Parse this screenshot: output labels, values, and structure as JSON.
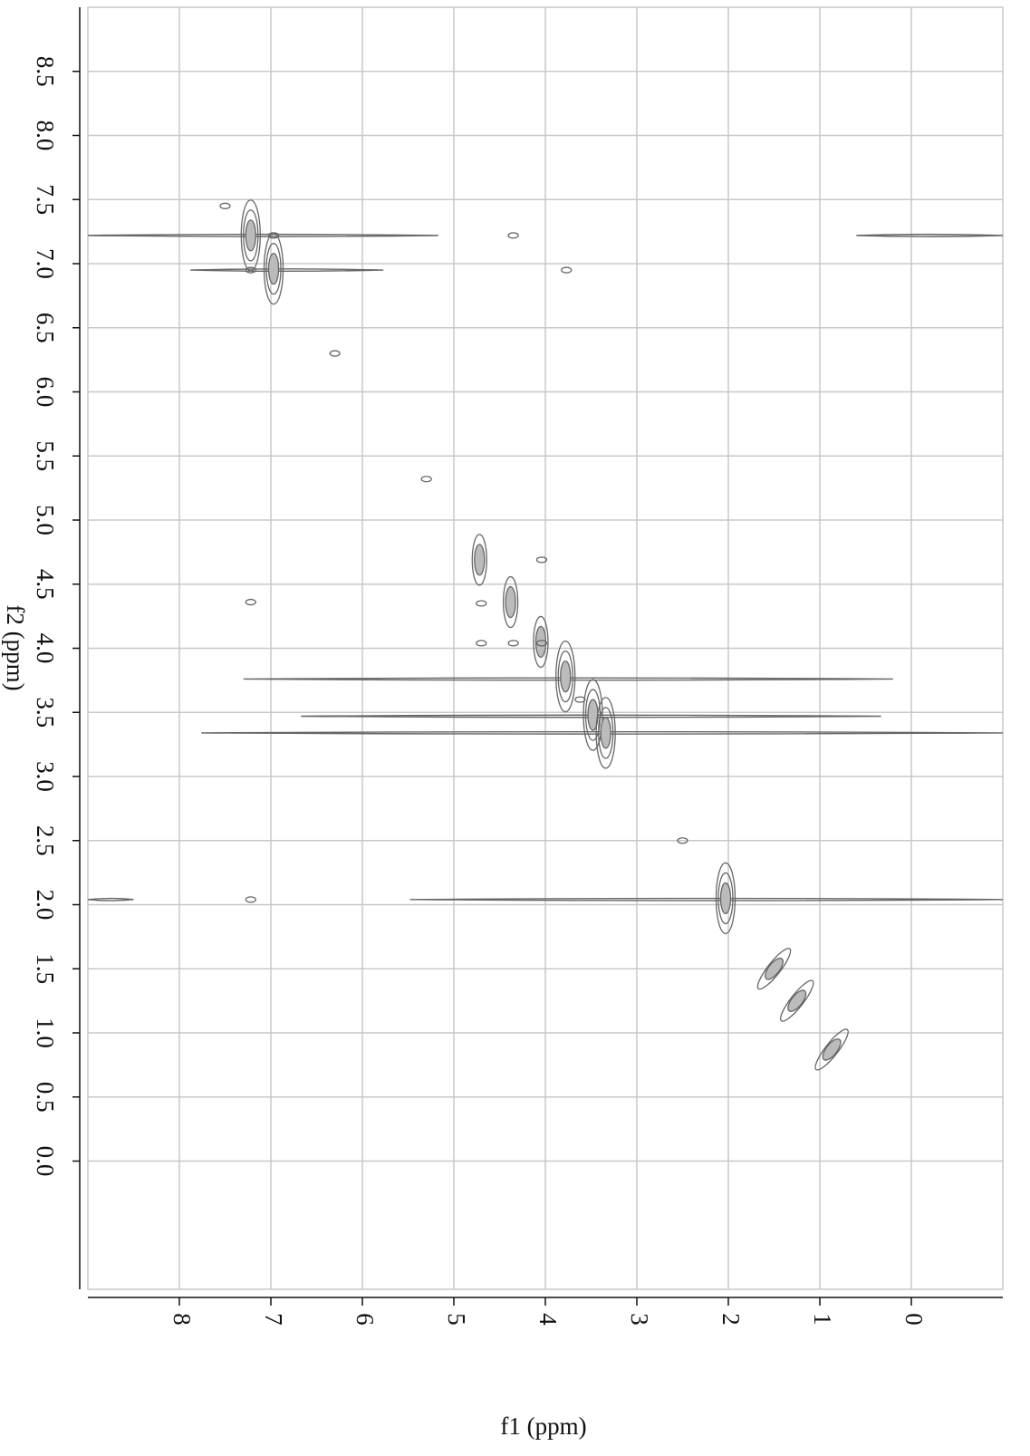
{
  "chart_data": {
    "type": "contour",
    "xlabel": "f1 (ppm)",
    "ylabel": "f2 (ppm)",
    "xlim": [
      9.0,
      -1.0
    ],
    "ylim": [
      -1.0,
      9.0
    ],
    "xticks": [
      8,
      7,
      6,
      5,
      4,
      3,
      2,
      1,
      0
    ],
    "yticks": [
      {
        "value": 0,
        "label": "0.0"
      },
      {
        "value": 0.5,
        "label": "0.5"
      },
      {
        "value": 1,
        "label": "1.0"
      },
      {
        "value": 1.5,
        "label": "1.5"
      },
      {
        "value": 2,
        "label": "2.0"
      },
      {
        "value": 2.5,
        "label": "2.5"
      },
      {
        "value": 3,
        "label": "3.0"
      },
      {
        "value": 3.5,
        "label": "3.5"
      },
      {
        "value": 4,
        "label": "4.0"
      },
      {
        "value": 4.5,
        "label": "4.5"
      },
      {
        "value": 5,
        "label": "5.0"
      },
      {
        "value": 5.5,
        "label": "5.5"
      },
      {
        "value": 6,
        "label": "6.0"
      },
      {
        "value": 6.5,
        "label": "6.5"
      },
      {
        "value": 7,
        "label": "7.0"
      },
      {
        "value": 7.5,
        "label": "7.5"
      },
      {
        "value": 8,
        "label": "8.0"
      },
      {
        "value": 8.5,
        "label": "8.5"
      }
    ],
    "grid": true,
    "color": "#666666",
    "peaks": {
      "x": [
        7.22,
        6.97,
        4.72,
        4.38,
        4.05,
        3.78,
        3.48,
        3.34,
        2.5,
        2.03,
        1.5,
        1.25,
        0.87,
        7.22,
        6.97,
        4.7,
        4.04,
        4.7,
        4.35,
        3.77,
        4.35,
        6.3,
        5.3,
        7.5,
        3.62,
        4.04,
        7.22,
        7.22
      ],
      "y": [
        7.22,
        6.96,
        4.69,
        4.36,
        4.05,
        3.78,
        3.48,
        3.34,
        2.5,
        2.05,
        1.5,
        1.25,
        0.87,
        6.95,
        7.22,
        4.04,
        4.69,
        4.35,
        4.04,
        6.95,
        7.22,
        6.3,
        5.32,
        7.45,
        3.6,
        4.04,
        4.36,
        2.04
      ],
      "size": [
        3,
        3,
        2,
        2,
        2,
        3,
        3,
        3,
        1,
        3,
        2,
        2,
        2,
        1,
        1,
        1,
        1,
        1,
        1,
        1,
        1,
        1,
        1,
        1,
        1,
        1,
        1,
        1
      ]
    },
    "ridges": {
      "y": [
        7.22,
        7.22,
        6.95,
        3.76,
        3.47,
        3.34,
        2.04,
        2.04
      ],
      "x_start": [
        9.0,
        0.6,
        7.88,
        7.3,
        6.67,
        7.76,
        5.48,
        9.0
      ],
      "x_end": [
        5.17,
        -1.0,
        5.77,
        0.2,
        0.33,
        -1.0,
        -1.0,
        8.5
      ]
    }
  }
}
